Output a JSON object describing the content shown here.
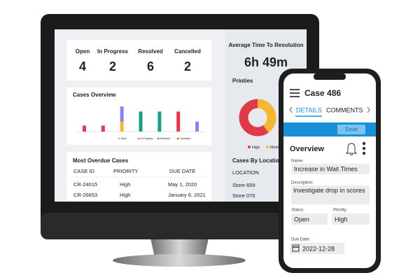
{
  "dashboard": {
    "stats": [
      {
        "label": "Open",
        "value": 4
      },
      {
        "label": "In Progress",
        "value": 2
      },
      {
        "label": "Resolved",
        "value": 6
      },
      {
        "label": "Cancelled",
        "value": 2
      }
    ],
    "avg_time": {
      "title": "Average Time To Resolution",
      "value": "6h 49m"
    },
    "cases_overview": {
      "title": "Cases Overview",
      "chart_data": {
        "type": "bar",
        "stacked": true,
        "categories": [
          null,
          null,
          null,
          null,
          null,
          null,
          null
        ],
        "ylim": [
          0,
          3
        ],
        "series": [
          {
            "name": "Open",
            "color": "#f5b731",
            "values": [
              0,
              0,
              1,
              0,
              0,
              0,
              0
            ]
          },
          {
            "name": "In Progress",
            "color": "#8a84e2",
            "values": [
              0,
              0,
              1.5,
              0,
              0,
              0,
              1
            ]
          },
          {
            "name": "Resolved",
            "color": "#1f9a8a",
            "values": [
              0,
              0,
              0,
              2,
              2,
              0,
              0
            ]
          },
          {
            "name": "Cancelled",
            "color": "#e0394a",
            "values": [
              0.6,
              0.6,
              0,
              0,
              0,
              2,
              0
            ]
          }
        ]
      }
    },
    "priorities": {
      "title": "Prioties",
      "chart_data": {
        "type": "donut",
        "categories": [
          "Medium",
          "High"
        ],
        "values": [
          40,
          60
        ],
        "colors": [
          "#f5b731",
          "#e0394a"
        ]
      }
    },
    "overdue": {
      "title": "Most Overdue Cases",
      "columns": [
        "CASE ID",
        "PRIORITY",
        "DUE DATE"
      ],
      "rows": [
        [
          "CR-24015",
          "High",
          "May 1, 2020"
        ],
        [
          "CR-26653",
          "High",
          "January 6, 2021"
        ]
      ]
    },
    "by_location": {
      "title": "Cases By Location",
      "column": "LOCATION",
      "rows": [
        "Store 659",
        "Store 076"
      ]
    }
  },
  "phone": {
    "title": "Case 486",
    "tabs": [
      "DETAILS",
      "COMMENTS"
    ],
    "save": "Save",
    "section": "Overview",
    "fields": [
      {
        "label": "Name:",
        "value": "Increase in Wait Times"
      },
      {
        "label": "Description:",
        "value": "Investigate drop in scores"
      },
      {
        "label": "Status:",
        "value": "Open"
      },
      {
        "label": "Priority",
        "value": "High"
      },
      {
        "label": "Due Date:",
        "value": "2022-12-28"
      }
    ]
  }
}
